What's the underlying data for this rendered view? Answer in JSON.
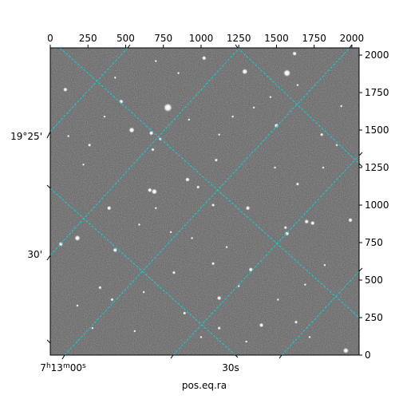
{
  "chart_data": {
    "type": "scatter",
    "title": "",
    "xlabel": "pos.eq.ra",
    "ylabel": "",
    "pixel_axes": {
      "x_ticks": [
        0,
        250,
        500,
        750,
        1000,
        1250,
        1500,
        1750,
        2000
      ],
      "y_ticks": [
        0,
        250,
        500,
        750,
        1000,
        1250,
        1500,
        1750,
        2000
      ],
      "xlim": [
        0,
        2048
      ],
      "ylim": [
        0,
        2048
      ]
    },
    "world_axes": {
      "ra_tick_labels": [
        "7h13m00s",
        "30s"
      ],
      "dec_tick_labels": [
        "19°25'",
        "30'"
      ]
    },
    "grid": true,
    "grid_color": "#00d8d8",
    "image_style": "grayscale star field",
    "stars": [
      {
        "x": 1570,
        "y": 1880,
        "b": 5
      },
      {
        "x": 1290,
        "y": 1890,
        "b": 4
      },
      {
        "x": 1020,
        "y": 1980,
        "b": 3
      },
      {
        "x": 1620,
        "y": 2010,
        "b": 3
      },
      {
        "x": 780,
        "y": 1650,
        "b": 6
      },
      {
        "x": 540,
        "y": 1500,
        "b": 4
      },
      {
        "x": 470,
        "y": 1690,
        "b": 3
      },
      {
        "x": 670,
        "y": 1480,
        "b": 3
      },
      {
        "x": 100,
        "y": 1770,
        "b": 3
      },
      {
        "x": 1500,
        "y": 1530,
        "b": 3
      },
      {
        "x": 680,
        "y": 1370,
        "b": 2
      },
      {
        "x": 1100,
        "y": 1300,
        "b": 2
      },
      {
        "x": 690,
        "y": 1090,
        "b": 4
      },
      {
        "x": 660,
        "y": 1100,
        "b": 3
      },
      {
        "x": 910,
        "y": 1170,
        "b": 3
      },
      {
        "x": 980,
        "y": 1120,
        "b": 2
      },
      {
        "x": 390,
        "y": 980,
        "b": 3
      },
      {
        "x": 1310,
        "y": 980,
        "b": 3
      },
      {
        "x": 1700,
        "y": 890,
        "b": 3
      },
      {
        "x": 1740,
        "y": 880,
        "b": 3
      },
      {
        "x": 1990,
        "y": 900,
        "b": 3
      },
      {
        "x": 180,
        "y": 780,
        "b": 4
      },
      {
        "x": 70,
        "y": 740,
        "b": 3
      },
      {
        "x": 430,
        "y": 700,
        "b": 3
      },
      {
        "x": 1570,
        "y": 810,
        "b": 3
      },
      {
        "x": 1080,
        "y": 610,
        "b": 2
      },
      {
        "x": 1330,
        "y": 570,
        "b": 3
      },
      {
        "x": 820,
        "y": 550,
        "b": 2
      },
      {
        "x": 330,
        "y": 450,
        "b": 2
      },
      {
        "x": 410,
        "y": 370,
        "b": 2
      },
      {
        "x": 1120,
        "y": 380,
        "b": 3
      },
      {
        "x": 1400,
        "y": 200,
        "b": 3
      },
      {
        "x": 1630,
        "y": 220,
        "b": 2
      },
      {
        "x": 1960,
        "y": 30,
        "b": 4
      },
      {
        "x": 1120,
        "y": 180,
        "b": 2
      },
      {
        "x": 890,
        "y": 280,
        "b": 2
      },
      {
        "x": 1080,
        "y": 1000,
        "b": 2
      },
      {
        "x": 1640,
        "y": 1140,
        "b": 2
      },
      {
        "x": 1560,
        "y": 850,
        "b": 2
      },
      {
        "x": 730,
        "y": 1440,
        "b": 2
      },
      {
        "x": 1800,
        "y": 1470,
        "b": 2
      },
      {
        "x": 260,
        "y": 1400,
        "b": 2
      },
      {
        "x": 120,
        "y": 1460,
        "b": 1
      },
      {
        "x": 220,
        "y": 1270,
        "b": 1
      },
      {
        "x": 850,
        "y": 1880,
        "b": 1
      },
      {
        "x": 1210,
        "y": 1590,
        "b": 1
      },
      {
        "x": 1350,
        "y": 1650,
        "b": 1
      },
      {
        "x": 1900,
        "y": 1400,
        "b": 1
      },
      {
        "x": 1930,
        "y": 1660,
        "b": 1
      },
      {
        "x": 1810,
        "y": 1250,
        "b": 1
      },
      {
        "x": 1490,
        "y": 1250,
        "b": 1
      },
      {
        "x": 590,
        "y": 870,
        "b": 1
      },
      {
        "x": 800,
        "y": 820,
        "b": 1
      },
      {
        "x": 940,
        "y": 780,
        "b": 1
      },
      {
        "x": 1170,
        "y": 720,
        "b": 1
      },
      {
        "x": 1820,
        "y": 600,
        "b": 1
      },
      {
        "x": 1690,
        "y": 470,
        "b": 1
      },
      {
        "x": 620,
        "y": 420,
        "b": 1
      },
      {
        "x": 180,
        "y": 330,
        "b": 1
      },
      {
        "x": 280,
        "y": 180,
        "b": 1
      },
      {
        "x": 560,
        "y": 160,
        "b": 1
      },
      {
        "x": 1000,
        "y": 120,
        "b": 1
      },
      {
        "x": 1300,
        "y": 90,
        "b": 1
      },
      {
        "x": 1720,
        "y": 120,
        "b": 1
      },
      {
        "x": 1510,
        "y": 370,
        "b": 1
      },
      {
        "x": 1250,
        "y": 460,
        "b": 1
      },
      {
        "x": 700,
        "y": 980,
        "b": 1
      },
      {
        "x": 1120,
        "y": 1470,
        "b": 1
      },
      {
        "x": 920,
        "y": 1570,
        "b": 1
      },
      {
        "x": 360,
        "y": 1590,
        "b": 1
      },
      {
        "x": 430,
        "y": 1850,
        "b": 1
      },
      {
        "x": 700,
        "y": 1960,
        "b": 1
      },
      {
        "x": 1460,
        "y": 1720,
        "b": 1
      },
      {
        "x": 1640,
        "y": 1800,
        "b": 1
      }
    ]
  }
}
